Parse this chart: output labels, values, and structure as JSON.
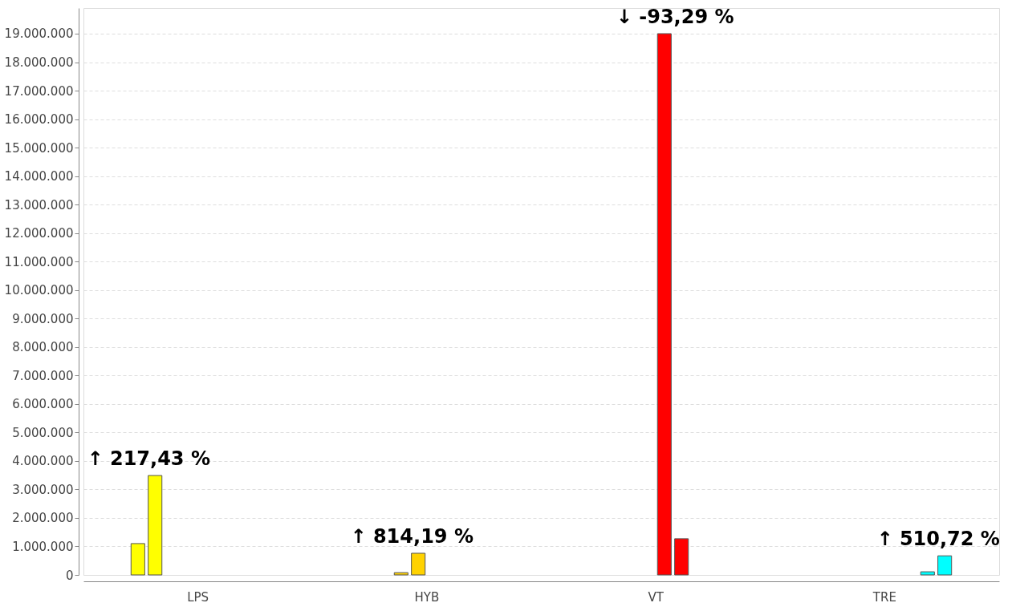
{
  "chart_data": {
    "type": "bar",
    "categories": [
      "LPS",
      "HYB",
      "VT",
      "TRE"
    ],
    "series": [
      {
        "color": "#ffff00",
        "values": [
          1100000,
          null,
          null,
          null
        ]
      },
      {
        "color": "#ffff00",
        "values": [
          3490000,
          null,
          null,
          null
        ]
      },
      {
        "color": "#ffd200",
        "values": [
          null,
          80000,
          null,
          null
        ]
      },
      {
        "color": "#ffd200",
        "values": [
          null,
          760000,
          null,
          null
        ]
      },
      {
        "color": "#ff0000",
        "values": [
          null,
          null,
          19000000,
          null
        ]
      },
      {
        "color": "#ff0000",
        "values": [
          null,
          null,
          1270000,
          null
        ]
      },
      {
        "color": "#00ffff",
        "values": [
          null,
          null,
          null,
          110000
        ]
      },
      {
        "color": "#00ffff",
        "values": [
          null,
          null,
          null,
          670000
        ]
      }
    ],
    "ylim": [
      0,
      19900000
    ],
    "yticks": [
      0,
      {
        "value": 1000000,
        "label": "1.000.000"
      },
      {
        "value": 2000000,
        "label": "2.000.000"
      },
      {
        "value": 3000000,
        "label": "3.000.000"
      },
      {
        "value": 4000000,
        "label": "4.000.000"
      },
      {
        "value": 5000000,
        "label": "5.000.000"
      },
      {
        "value": 6000000,
        "label": "6.000.000"
      },
      {
        "value": 7000000,
        "label": "7.000.000"
      },
      {
        "value": 8000000,
        "label": "8.000.000"
      },
      {
        "value": 9000000,
        "label": "9.000.000"
      },
      {
        "value": 10000000,
        "label": "10.000.000"
      },
      {
        "value": 11000000,
        "label": "11.000.000"
      },
      {
        "value": 12000000,
        "label": "12.000.000"
      },
      {
        "value": 13000000,
        "label": "13.000.000"
      },
      {
        "value": 14000000,
        "label": "14.000.000"
      },
      {
        "value": 15000000,
        "label": "15.000.000"
      },
      {
        "value": 16000000,
        "label": "16.000.000"
      },
      {
        "value": 17000000,
        "label": "17.000.000"
      },
      {
        "value": 18000000,
        "label": "18.000.000"
      },
      {
        "value": 19000000,
        "label": "19.000.000"
      }
    ],
    "grid": "y",
    "legend": false,
    "annotations": [
      "↑  217,43 %",
      "↑  814,19 %",
      "↓  -93,29 %",
      "↑  510,72 %"
    ]
  }
}
